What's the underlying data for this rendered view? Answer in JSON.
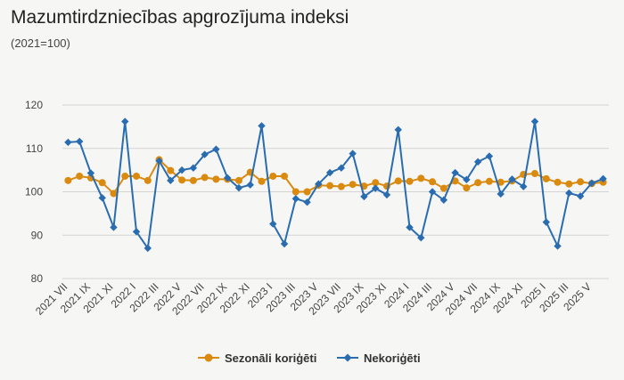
{
  "chart_data": {
    "type": "line",
    "title": "Mazumtirdzniecības apgrozījuma indeksi",
    "subtitle": "(2021=100)",
    "ylim": [
      80,
      120
    ],
    "yticks": [
      80,
      90,
      100,
      110,
      120
    ],
    "grid": "horizontal",
    "legend": "bottom-center",
    "x": [
      "2021 VII",
      "2021 VIII",
      "2021 IX",
      "2021 X",
      "2021 XI",
      "2021 XII",
      "2022 I",
      "2022 II",
      "2022 III",
      "2022 IV",
      "2022 V",
      "2022 VI",
      "2022 VII",
      "2022 VIII",
      "2022 IX",
      "2022 X",
      "2022 XI",
      "2022 XII",
      "2023 I",
      "2023 II",
      "2023 III",
      "2023 IV",
      "2023 V",
      "2023 VI",
      "2023 VII",
      "2023 VIII",
      "2023 IX",
      "2023 X",
      "2023 XI",
      "2023 XII",
      "2024 I",
      "2024 II",
      "2024 III",
      "2024 IV",
      "2024 V",
      "2024 VI",
      "2024 VII",
      "2024 VIII",
      "2024 IX",
      "2024 X",
      "2024 XI",
      "2024 XII",
      "2025 I",
      "2025 II",
      "2025 III",
      "2025 IV",
      "2025 V",
      "2025 VI"
    ],
    "tick_labels": [
      "2021 VII",
      "2021 IX",
      "2021 XI",
      "2022 I",
      "2022 III",
      "2022 V",
      "2022 VII",
      "2022 IX",
      "2022 XI",
      "2023 I",
      "2023 III",
      "2023 V",
      "2023 VII",
      "2023 IX",
      "2023 XI",
      "2024 I",
      "2024 III",
      "2024 V",
      "2024 VII",
      "2024 IX",
      "2024 XI",
      "2025 I",
      "2025 III",
      "2025 V"
    ],
    "series": [
      {
        "name": "Sezonāli koriģēti",
        "color": "#d98a0f",
        "marker": "circle",
        "values": [
          102.6,
          103.6,
          103.2,
          102.1,
          99.6,
          103.6,
          103.6,
          102.6,
          107.4,
          104.9,
          102.7,
          102.6,
          103.3,
          102.9,
          102.9,
          102.6,
          104.5,
          102.4,
          103.6,
          103.6,
          100.0,
          100.0,
          101.5,
          101.4,
          101.2,
          101.7,
          101.3,
          102.1,
          101.3,
          102.5,
          102.4,
          103.1,
          102.3,
          100.8,
          102.5,
          100.9,
          102.1,
          102.4,
          102.2,
          102.5,
          104.0,
          104.2,
          103.0,
          102.2,
          101.8,
          102.3,
          101.9,
          102.2
        ]
      },
      {
        "name": "Nekoriģēti",
        "color": "#2a6cb0",
        "marker": "diamond",
        "values": [
          111.4,
          111.6,
          104.3,
          98.6,
          91.8,
          116.2,
          90.8,
          87.0,
          107.1,
          102.6,
          105.0,
          105.5,
          108.6,
          109.8,
          103.2,
          100.9,
          101.6,
          115.2,
          92.6,
          88.0,
          98.4,
          97.6,
          101.8,
          104.4,
          105.5,
          108.8,
          98.9,
          100.8,
          99.3,
          114.3,
          91.8,
          89.4,
          100.0,
          98.1,
          104.4,
          102.8,
          106.9,
          108.2,
          99.5,
          102.9,
          101.2,
          116.2,
          93.0,
          87.5,
          99.7,
          99.0,
          102.0,
          103.0
        ]
      }
    ]
  }
}
